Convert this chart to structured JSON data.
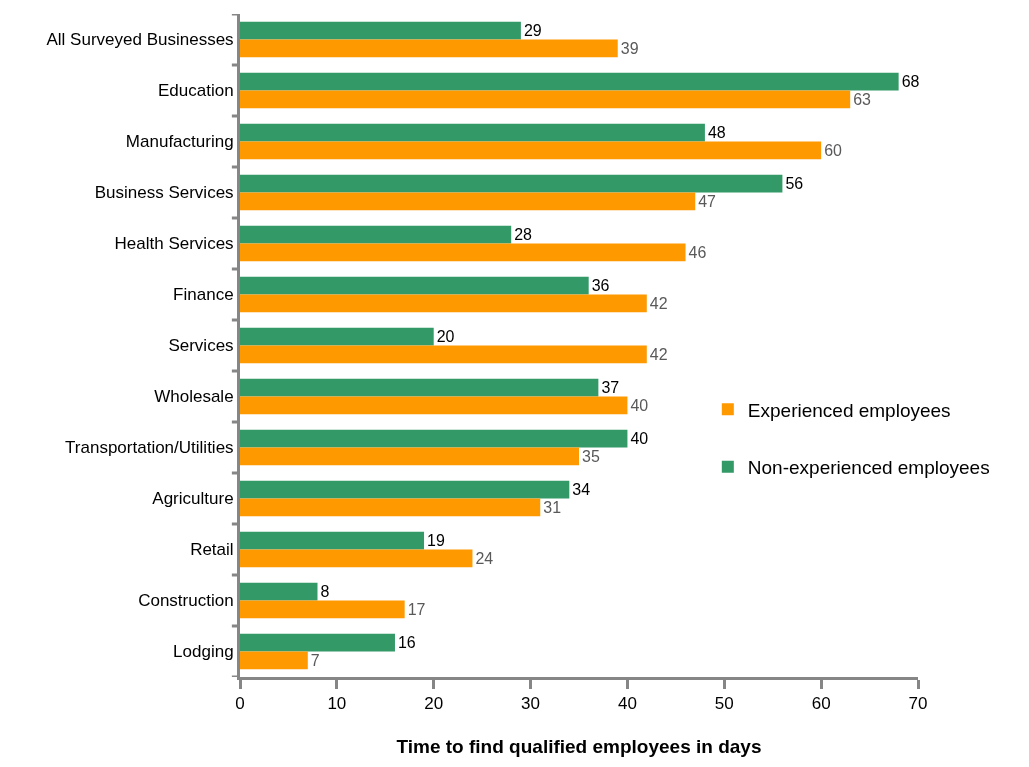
{
  "chart_data": {
    "type": "bar",
    "orientation": "horizontal",
    "categories": [
      "All Surveyed Businesses",
      "Education",
      "Manufacturing",
      "Business Services",
      "Health Services",
      "Finance",
      "Services",
      "Wholesale",
      "Transportation/Utilities",
      "Agriculture",
      "Retail",
      "Construction",
      "Lodging"
    ],
    "series": [
      {
        "name": "Non-experienced employees",
        "color": "#339966",
        "values": [
          29,
          68,
          48,
          56,
          28,
          36,
          20,
          37,
          40,
          34,
          19,
          8,
          16
        ]
      },
      {
        "name": "Experienced employees",
        "color": "#ff9900",
        "values": [
          39,
          63,
          60,
          47,
          46,
          42,
          42,
          40,
          35,
          31,
          24,
          17,
          7
        ]
      }
    ],
    "xlabel": "Time to find qualified employees in days",
    "xlim": [
      0,
      70
    ],
    "xticks": [
      0,
      10,
      20,
      30,
      40,
      50,
      60,
      70
    ],
    "data_labels": true,
    "grid": false,
    "legend": "right"
  }
}
